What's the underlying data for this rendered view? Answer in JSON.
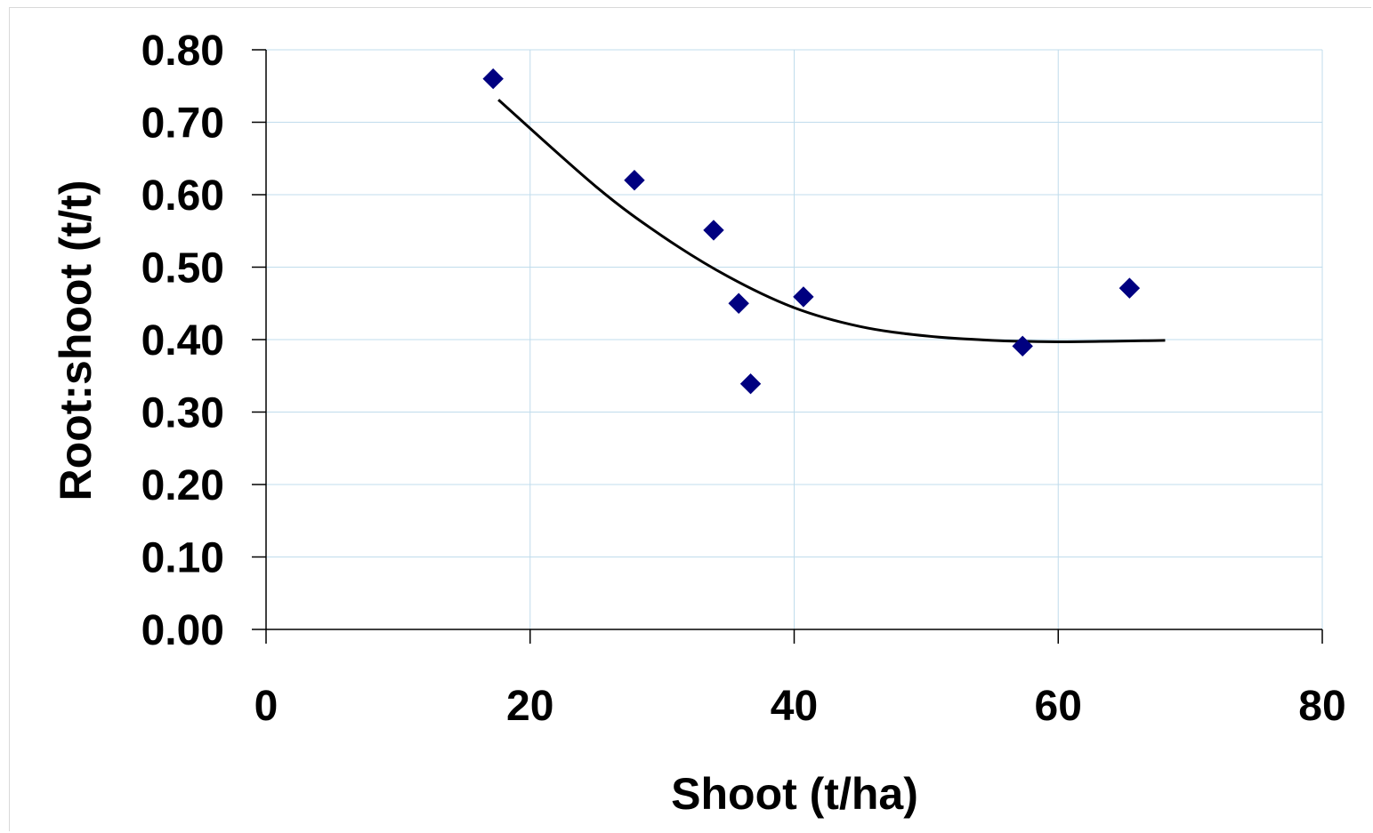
{
  "chart_data": {
    "type": "scatter",
    "title": "",
    "xlabel": "Shoot (t/ha)",
    "ylabel": "Root:shoot (t/t)",
    "xlim": [
      0,
      80
    ],
    "ylim": [
      0.0,
      0.8
    ],
    "x_ticks": [
      "0",
      "20",
      "40",
      "60",
      "80"
    ],
    "y_ticks": [
      "0.00",
      "0.10",
      "0.20",
      "0.30",
      "0.40",
      "0.50",
      "0.60",
      "0.70",
      "0.80"
    ],
    "grid": true,
    "legend": "none",
    "series": [
      {
        "marker": "diamond",
        "color": "#000080",
        "points": [
          {
            "x": 17.2,
            "y": 0.76
          },
          {
            "x": 27.9,
            "y": 0.62
          },
          {
            "x": 33.9,
            "y": 0.551
          },
          {
            "x": 35.8,
            "y": 0.45
          },
          {
            "x": 36.7,
            "y": 0.339
          },
          {
            "x": 40.7,
            "y": 0.459
          },
          {
            "x": 57.3,
            "y": 0.391
          },
          {
            "x": 65.4,
            "y": 0.471
          }
        ]
      }
    ],
    "trendline": {
      "type": "polynomial",
      "color": "#000000",
      "x_range": [
        17.6,
        68.1
      ],
      "points": [
        {
          "x": 17.6,
          "y": 0.731
        },
        {
          "x": 25.0,
          "y": 0.611
        },
        {
          "x": 30.0,
          "y": 0.543
        },
        {
          "x": 35.0,
          "y": 0.487
        },
        {
          "x": 40.0,
          "y": 0.444
        },
        {
          "x": 45.0,
          "y": 0.418
        },
        {
          "x": 50.0,
          "y": 0.405
        },
        {
          "x": 55.0,
          "y": 0.399
        },
        {
          "x": 60.0,
          "y": 0.397
        },
        {
          "x": 68.1,
          "y": 0.399
        }
      ]
    },
    "colors": {
      "gridline": "#c0dcec",
      "axis": "#000000",
      "marker": "#000080",
      "trendline": "#000000"
    }
  }
}
